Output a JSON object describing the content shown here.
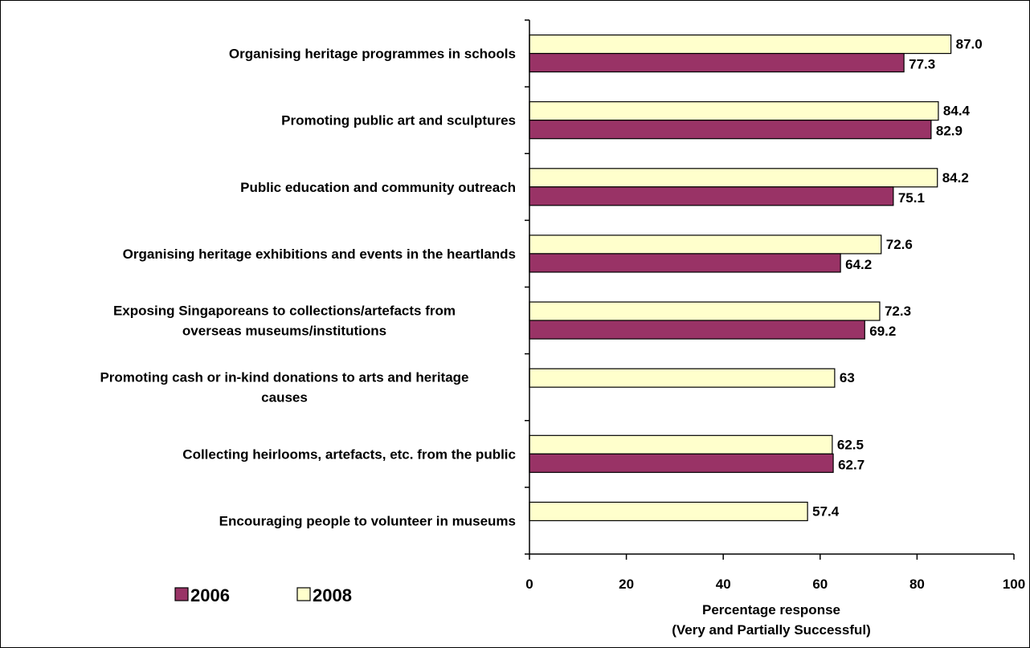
{
  "chart_data": {
    "type": "bar",
    "orientation": "horizontal",
    "categories": [
      [
        "Organising heritage programmes in schools"
      ],
      [
        "Promoting public art and sculptures"
      ],
      [
        "Public education and community outreach"
      ],
      [
        "Organising heritage exhibitions and events in the heartlands"
      ],
      [
        "Exposing Singaporeans to collections/artefacts from",
        "overseas museums/institutions"
      ],
      [
        "Promoting cash or in-kind donations to arts and heritage",
        "causes"
      ],
      [
        "Collecting heirlooms, artefacts, etc. from the public"
      ],
      [
        "Encouraging people to volunteer in museums"
      ]
    ],
    "series": [
      {
        "name": "2008",
        "color": "#FFFFCC",
        "values": [
          87.0,
          84.4,
          84.2,
          72.6,
          72.3,
          63,
          62.5,
          57.4
        ],
        "labels": [
          "87.0",
          "84.4",
          "84.2",
          "72.6",
          "72.3",
          "63",
          "62.5",
          "57.4"
        ]
      },
      {
        "name": "2006",
        "color": "#993366",
        "values": [
          77.3,
          82.9,
          75.1,
          64.2,
          69.2,
          null,
          62.7,
          null
        ],
        "labels": [
          "77.3",
          "82.9",
          "75.1",
          "64.2",
          "69.2",
          "",
          "62.7",
          ""
        ]
      }
    ],
    "xlim": [
      0,
      100
    ],
    "xticks": [
      0,
      20,
      40,
      60,
      80,
      100
    ],
    "xticklabels": [
      "0",
      "20",
      "40",
      "60",
      "80",
      "100"
    ],
    "xlabel": [
      "Percentage response",
      "(Very and Partially Successful)"
    ],
    "legend": {
      "placement": "bottom-left",
      "order": [
        "2006",
        "2008"
      ]
    },
    "grid": false
  }
}
